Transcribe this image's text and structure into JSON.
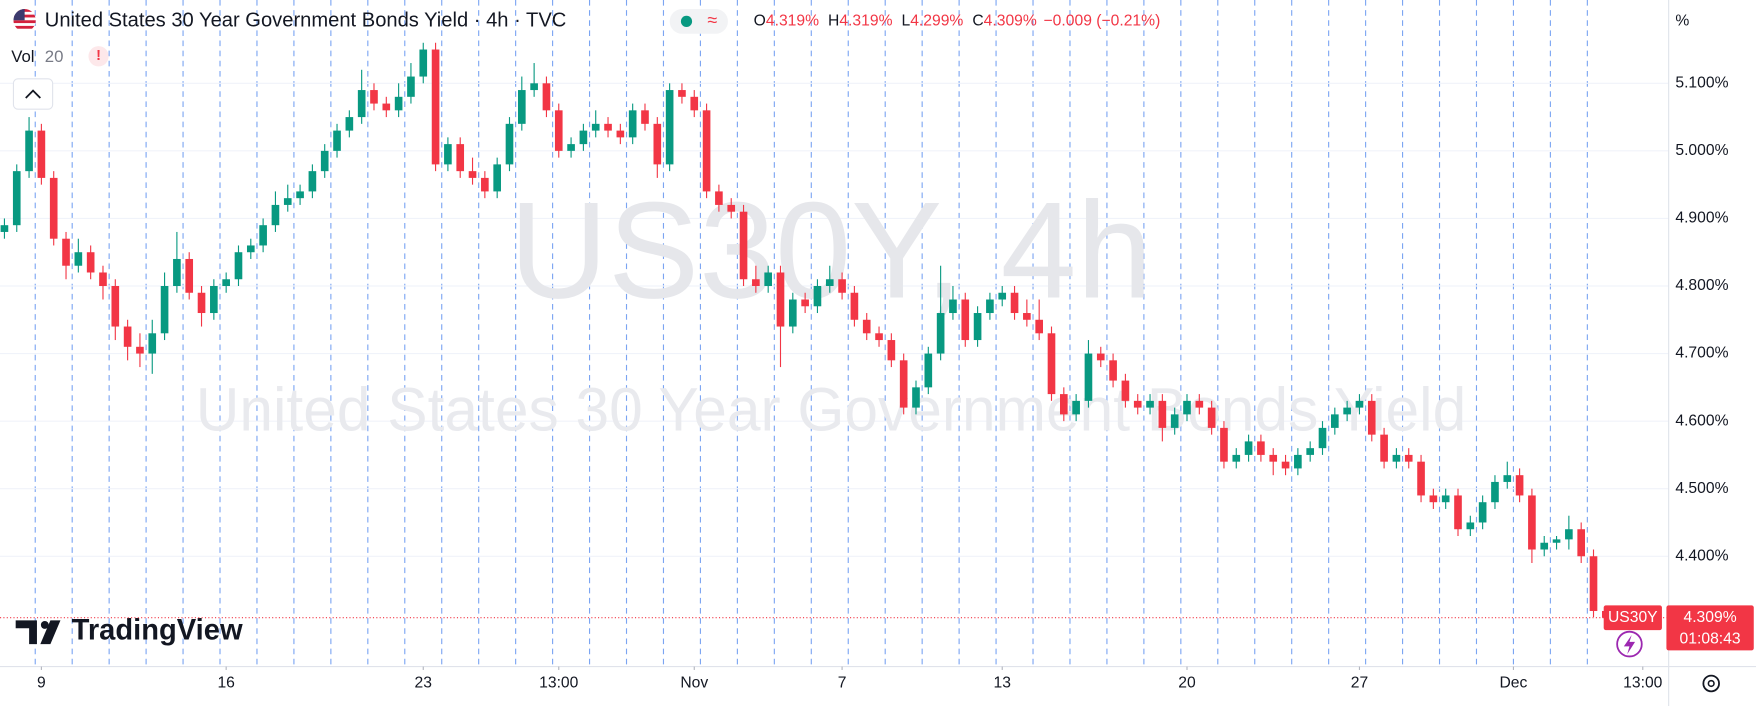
{
  "chart_data": {
    "type": "candlestick",
    "header": {
      "title": "United States 30 Year Government Bonds Yield · 4h · TVC",
      "status": "≈",
      "ohlc": [
        {
          "key": "O",
          "value": "4.319%"
        },
        {
          "key": "H",
          "value": "4.319%"
        },
        {
          "key": "L",
          "value": "4.299%"
        },
        {
          "key": "C",
          "value": "4.309%"
        }
      ],
      "change": "−0.009 (−0.21%)",
      "volume_label": "Vol",
      "volume_length": "20",
      "volume_warning": "!"
    },
    "watermark": {
      "symbol": "US30Y, 4h",
      "name": "United States 30 Year Government Bonds Yield"
    },
    "brand": "TradingView",
    "axis_unit": "%",
    "price_label": {
      "symbol": "US30Y",
      "price": "4.309%",
      "countdown": "01:08:43"
    },
    "up_color": "#089981",
    "down_color": "#f23645",
    "xlim": [
      -0.36,
      135.1
    ],
    "xticks": [
      {
        "value": 3,
        "label": "9"
      },
      {
        "value": 18,
        "label": "16"
      },
      {
        "value": 34,
        "label": "23"
      },
      {
        "value": 45,
        "label": "13:00"
      },
      {
        "value": 56,
        "label": "Nov"
      },
      {
        "value": 68,
        "label": "7"
      },
      {
        "value": 81,
        "label": "13"
      },
      {
        "value": 96,
        "label": "20"
      },
      {
        "value": 110,
        "label": "27"
      },
      {
        "value": 122.5,
        "label": "Dec"
      },
      {
        "value": 133,
        "label": "13:00"
      }
    ],
    "ylim": [
      4.2367,
      5.2233
    ],
    "yticks": [
      {
        "value": 5.1,
        "label": "5.100%"
      },
      {
        "value": 5.0,
        "label": "5.000%"
      },
      {
        "value": 4.9,
        "label": "4.900%"
      },
      {
        "value": 4.8,
        "label": "4.800%"
      },
      {
        "value": 4.7,
        "label": "4.700%"
      },
      {
        "value": 4.6,
        "label": "4.600%"
      },
      {
        "value": 4.5,
        "label": "4.500%"
      },
      {
        "value": 4.4,
        "label": "4.400%"
      }
    ],
    "candles": [
      [
        4.88,
        4.9,
        4.87,
        4.89
      ],
      [
        4.89,
        4.98,
        4.88,
        4.97
      ],
      [
        4.97,
        5.05,
        4.96,
        5.03
      ],
      [
        5.03,
        5.04,
        4.95,
        4.96
      ],
      [
        4.96,
        4.97,
        4.86,
        4.87
      ],
      [
        4.87,
        4.88,
        4.81,
        4.83
      ],
      [
        4.83,
        4.87,
        4.82,
        4.85
      ],
      [
        4.85,
        4.86,
        4.81,
        4.82
      ],
      [
        4.82,
        4.83,
        4.78,
        4.8
      ],
      [
        4.8,
        4.81,
        4.72,
        4.74
      ],
      [
        4.74,
        4.75,
        4.69,
        4.71
      ],
      [
        4.71,
        4.73,
        4.68,
        4.7
      ],
      [
        4.7,
        4.75,
        4.67,
        4.73
      ],
      [
        4.73,
        4.82,
        4.72,
        4.8
      ],
      [
        4.8,
        4.88,
        4.79,
        4.84
      ],
      [
        4.84,
        4.85,
        4.78,
        4.79
      ],
      [
        4.79,
        4.8,
        4.74,
        4.76
      ],
      [
        4.76,
        4.81,
        4.75,
        4.8
      ],
      [
        4.8,
        4.82,
        4.79,
        4.81
      ],
      [
        4.81,
        4.86,
        4.8,
        4.85
      ],
      [
        4.85,
        4.87,
        4.84,
        4.86
      ],
      [
        4.86,
        4.9,
        4.85,
        4.89
      ],
      [
        4.89,
        4.94,
        4.88,
        4.92
      ],
      [
        4.92,
        4.95,
        4.91,
        4.93
      ],
      [
        4.93,
        4.95,
        4.92,
        4.94
      ],
      [
        4.94,
        4.98,
        4.93,
        4.97
      ],
      [
        4.97,
        5.01,
        4.96,
        5.0
      ],
      [
        5.0,
        5.04,
        4.99,
        5.03
      ],
      [
        5.03,
        5.06,
        5.02,
        5.05
      ],
      [
        5.05,
        5.12,
        5.04,
        5.09
      ],
      [
        5.09,
        5.1,
        5.06,
        5.07
      ],
      [
        5.07,
        5.08,
        5.05,
        5.06
      ],
      [
        5.06,
        5.1,
        5.05,
        5.08
      ],
      [
        5.08,
        5.13,
        5.07,
        5.11
      ],
      [
        5.11,
        5.16,
        5.1,
        5.15
      ],
      [
        5.15,
        5.16,
        4.97,
        4.98
      ],
      [
        4.98,
        5.02,
        4.97,
        5.01
      ],
      [
        5.01,
        5.02,
        4.96,
        4.97
      ],
      [
        4.97,
        4.99,
        4.95,
        4.96
      ],
      [
        4.96,
        4.97,
        4.93,
        4.94
      ],
      [
        4.94,
        4.99,
        4.93,
        4.98
      ],
      [
        4.98,
        5.05,
        4.97,
        5.04
      ],
      [
        5.04,
        5.11,
        5.03,
        5.09
      ],
      [
        5.09,
        5.13,
        5.08,
        5.1
      ],
      [
        5.1,
        5.11,
        5.05,
        5.06
      ],
      [
        5.06,
        5.07,
        4.99,
        5.0
      ],
      [
        5.0,
        5.02,
        4.99,
        5.01
      ],
      [
        5.01,
        5.04,
        5.0,
        5.03
      ],
      [
        5.03,
        5.06,
        5.02,
        5.04
      ],
      [
        5.04,
        5.05,
        5.02,
        5.03
      ],
      [
        5.03,
        5.04,
        5.01,
        5.02
      ],
      [
        5.02,
        5.07,
        5.01,
        5.06
      ],
      [
        5.06,
        5.07,
        5.03,
        5.04
      ],
      [
        5.04,
        5.05,
        4.96,
        4.98
      ],
      [
        4.98,
        5.1,
        4.97,
        5.09
      ],
      [
        5.09,
        5.1,
        5.07,
        5.08
      ],
      [
        5.08,
        5.09,
        5.05,
        5.06
      ],
      [
        5.06,
        5.07,
        4.93,
        4.94
      ],
      [
        4.94,
        4.95,
        4.91,
        4.92
      ],
      [
        4.92,
        4.93,
        4.9,
        4.91
      ],
      [
        4.91,
        4.92,
        4.8,
        4.81
      ],
      [
        4.81,
        4.83,
        4.79,
        4.8
      ],
      [
        4.8,
        4.83,
        4.79,
        4.82
      ],
      [
        4.82,
        4.83,
        4.68,
        4.74
      ],
      [
        4.74,
        4.79,
        4.73,
        4.78
      ],
      [
        4.78,
        4.79,
        4.76,
        4.77
      ],
      [
        4.77,
        4.81,
        4.76,
        4.8
      ],
      [
        4.8,
        4.83,
        4.79,
        4.81
      ],
      [
        4.81,
        4.82,
        4.78,
        4.79
      ],
      [
        4.79,
        4.8,
        4.74,
        4.75
      ],
      [
        4.75,
        4.76,
        4.72,
        4.73
      ],
      [
        4.73,
        4.74,
        4.71,
        4.72
      ],
      [
        4.72,
        4.73,
        4.68,
        4.69
      ],
      [
        4.69,
        4.7,
        4.61,
        4.62
      ],
      [
        4.62,
        4.66,
        4.61,
        4.65
      ],
      [
        4.65,
        4.71,
        4.64,
        4.7
      ],
      [
        4.7,
        4.83,
        4.69,
        4.76
      ],
      [
        4.76,
        4.8,
        4.75,
        4.78
      ],
      [
        4.78,
        4.79,
        4.71,
        4.72
      ],
      [
        4.72,
        4.77,
        4.71,
        4.76
      ],
      [
        4.76,
        4.79,
        4.75,
        4.78
      ],
      [
        4.78,
        4.8,
        4.77,
        4.79
      ],
      [
        4.79,
        4.8,
        4.75,
        4.76
      ],
      [
        4.76,
        4.78,
        4.74,
        4.75
      ],
      [
        4.75,
        4.78,
        4.72,
        4.73
      ],
      [
        4.73,
        4.74,
        4.63,
        4.64
      ],
      [
        4.64,
        4.65,
        4.6,
        4.61
      ],
      [
        4.61,
        4.64,
        4.6,
        4.63
      ],
      [
        4.63,
        4.72,
        4.62,
        4.7
      ],
      [
        4.7,
        4.71,
        4.68,
        4.69
      ],
      [
        4.69,
        4.7,
        4.65,
        4.66
      ],
      [
        4.66,
        4.67,
        4.62,
        4.63
      ],
      [
        4.63,
        4.64,
        4.61,
        4.62
      ],
      [
        4.62,
        4.64,
        4.61,
        4.63
      ],
      [
        4.63,
        4.64,
        4.57,
        4.59
      ],
      [
        4.59,
        4.62,
        4.58,
        4.61
      ],
      [
        4.61,
        4.64,
        4.6,
        4.63
      ],
      [
        4.63,
        4.64,
        4.61,
        4.62
      ],
      [
        4.62,
        4.63,
        4.58,
        4.59
      ],
      [
        4.59,
        4.6,
        4.53,
        4.54
      ],
      [
        4.54,
        4.56,
        4.53,
        4.55
      ],
      [
        4.55,
        4.58,
        4.54,
        4.57
      ],
      [
        4.57,
        4.58,
        4.54,
        4.55
      ],
      [
        4.55,
        4.56,
        4.52,
        4.54
      ],
      [
        4.54,
        4.55,
        4.52,
        4.53
      ],
      [
        4.53,
        4.56,
        4.52,
        4.55
      ],
      [
        4.55,
        4.57,
        4.54,
        4.56
      ],
      [
        4.56,
        4.6,
        4.55,
        4.59
      ],
      [
        4.59,
        4.62,
        4.58,
        4.61
      ],
      [
        4.61,
        4.63,
        4.6,
        4.62
      ],
      [
        4.62,
        4.64,
        4.61,
        4.63
      ],
      [
        4.63,
        4.64,
        4.57,
        4.58
      ],
      [
        4.58,
        4.59,
        4.53,
        4.54
      ],
      [
        4.54,
        4.56,
        4.53,
        4.55
      ],
      [
        4.55,
        4.56,
        4.53,
        4.54
      ],
      [
        4.54,
        4.55,
        4.48,
        4.49
      ],
      [
        4.49,
        4.5,
        4.47,
        4.48
      ],
      [
        4.48,
        4.5,
        4.47,
        4.49
      ],
      [
        4.49,
        4.5,
        4.43,
        4.44
      ],
      [
        4.44,
        4.46,
        4.43,
        4.45
      ],
      [
        4.45,
        4.49,
        4.44,
        4.48
      ],
      [
        4.48,
        4.52,
        4.47,
        4.51
      ],
      [
        4.51,
        4.54,
        4.5,
        4.52
      ],
      [
        4.52,
        4.53,
        4.48,
        4.49
      ],
      [
        4.49,
        4.5,
        4.39,
        4.41
      ],
      [
        4.41,
        4.43,
        4.4,
        4.42
      ],
      [
        4.42,
        4.43,
        4.41,
        4.425
      ],
      [
        4.425,
        4.46,
        4.41,
        4.44
      ],
      [
        4.44,
        4.45,
        4.39,
        4.4
      ],
      [
        4.4,
        4.41,
        4.31,
        4.319
      ],
      [
        4.319,
        4.319,
        4.299,
        4.309
      ]
    ]
  }
}
